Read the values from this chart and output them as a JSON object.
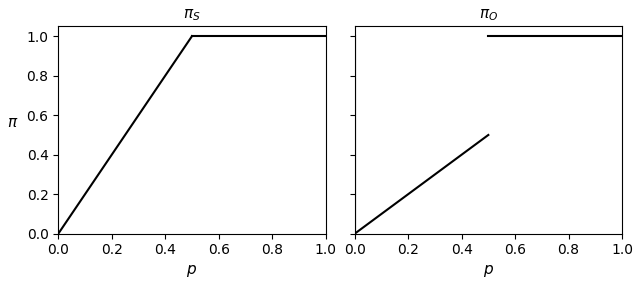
{
  "left_title": "$\\pi_S$",
  "right_title": "$\\pi_O$",
  "ylabel": "$\\pi$",
  "xlabel": "$p$",
  "xlim": [
    0.0,
    1.0
  ],
  "ylim": [
    0.0,
    1.05
  ],
  "xticks": [
    0.0,
    0.2,
    0.4,
    0.6,
    0.8,
    1.0
  ],
  "yticks": [
    0.0,
    0.2,
    0.4,
    0.6,
    0.8,
    1.0
  ],
  "line_color": "black",
  "line_width": 1.5,
  "left_segments": [
    {
      "x": [
        0.0,
        0.5
      ],
      "y": [
        0.0,
        1.0
      ]
    },
    {
      "x": [
        0.5,
        1.0
      ],
      "y": [
        1.0,
        1.0
      ]
    }
  ],
  "right_segments": [
    {
      "x": [
        0.0,
        0.0
      ],
      "y": [
        0.0,
        1.0
      ]
    },
    {
      "x": [
        0.0,
        0.5
      ],
      "y": [
        0.0,
        0.5
      ]
    },
    {
      "x": [
        0.5,
        1.0
      ],
      "y": [
        1.0,
        1.0
      ]
    }
  ],
  "figsize": [
    6.4,
    2.86
  ],
  "dpi": 100,
  "title_fontsize": 11,
  "label_fontsize": 11
}
